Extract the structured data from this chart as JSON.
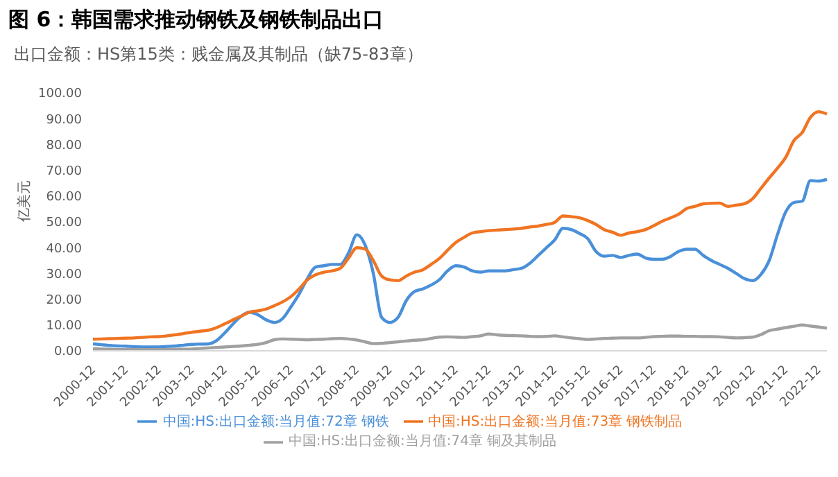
{
  "chart_data": {
    "type": "line",
    "title": "图 6：韩国需求推动钢铁及钢铁制品出口",
    "subtitle": "出口金额：HS第15类：贱金属及其制品（缺75-83章）",
    "ylabel": "亿美元",
    "categories": [
      "2000-12",
      null,
      null,
      null,
      "2001-12",
      null,
      null,
      null,
      "2002-12",
      null,
      null,
      null,
      "2003-12",
      null,
      null,
      null,
      "2004-12",
      null,
      null,
      null,
      "2005-12",
      null,
      null,
      null,
      "2006-12",
      null,
      null,
      null,
      "2007-12",
      null,
      null,
      null,
      "2008-12",
      null,
      null,
      null,
      "2009-12",
      null,
      null,
      null,
      "2010-12",
      null,
      null,
      null,
      "2011-12",
      null,
      null,
      null,
      "2012-12",
      null,
      null,
      null,
      "2013-12",
      null,
      null,
      null,
      "2014-12",
      null,
      null,
      null,
      "2015-12",
      null,
      null,
      null,
      "2016-12",
      null,
      null,
      null,
      "2017-12",
      null,
      null,
      null,
      "2018-12",
      null,
      null,
      null,
      "2019-12",
      null,
      null,
      null,
      "2020-12",
      null,
      null,
      null,
      "2021-12",
      null,
      null,
      null,
      "2022-12",
      null
    ],
    "series": [
      {
        "name": "中国:HS:出口金额:当月值:72章 钢铁",
        "color": "#4a90d9",
        "values": [
          2.7,
          2.4,
          2.1,
          1.9,
          1.8,
          1.6,
          1.5,
          1.5,
          1.5,
          1.7,
          1.9,
          2.2,
          2.5,
          2.6,
          2.7,
          4,
          7,
          10.5,
          13.5,
          15,
          14,
          12,
          11,
          12.5,
          17,
          22,
          28,
          32.5,
          33,
          33.5,
          33.5,
          38,
          45,
          41,
          30,
          13,
          11,
          13,
          19.5,
          23,
          24,
          25.5,
          27.5,
          31,
          33,
          32.5,
          31,
          30.5,
          31,
          31,
          31,
          31.5,
          32,
          34,
          37,
          40,
          43,
          47.5,
          47,
          45.5,
          43.5,
          38.5,
          36.7,
          37,
          36.2,
          37,
          37.5,
          36,
          35.5,
          35.5,
          36.5,
          38.5,
          39.4,
          39.4,
          37,
          35,
          33.5,
          32,
          30,
          28,
          27.2,
          29.6,
          35,
          45,
          53.8,
          57.5,
          58,
          66,
          65.8,
          66.5
        ]
      },
      {
        "name": "中国:HS:出口金额:当月值:73章 钢铁制品",
        "color": "#f07422",
        "values": [
          4.5,
          4.6,
          4.7,
          4.8,
          4.9,
          5.0,
          5.2,
          5.4,
          5.5,
          5.8,
          6.2,
          6.7,
          7.2,
          7.6,
          8.0,
          9,
          10.5,
          12,
          13.5,
          15,
          15.5,
          16.2,
          17.5,
          19,
          21,
          24,
          27.5,
          29.5,
          30.5,
          31,
          32,
          36,
          40,
          39.5,
          35,
          29,
          27.5,
          27.2,
          29,
          30.5,
          31.4,
          33.5,
          35.8,
          39,
          42,
          44,
          45.7,
          46.2,
          46.6,
          46.8,
          47,
          47.2,
          47.5,
          48,
          48.4,
          49,
          49.8,
          52.3,
          52,
          51.6,
          50.5,
          49,
          47,
          46,
          44.8,
          45.7,
          46.2,
          47,
          48.5,
          50.2,
          51.5,
          52.9,
          55.2,
          56,
          57,
          57.2,
          57.3,
          56,
          56.5,
          57,
          59,
          63,
          67,
          70.8,
          75,
          81.5,
          84.6,
          90.5,
          92.7,
          91.8
        ]
      },
      {
        "name": "中国:HS:出口金额:当月值:74章 铜及其制品",
        "color": "#a0a0a0",
        "values": [
          0.8,
          0.7,
          0.6,
          0.5,
          0.5,
          0.5,
          0.5,
          0.5,
          0.5,
          0.5,
          0.6,
          0.6,
          0.7,
          0.9,
          1.1,
          1.3,
          1.5,
          1.7,
          1.9,
          2.2,
          2.5,
          3.2,
          4.3,
          4.6,
          4.5,
          4.4,
          4.3,
          4.4,
          4.5,
          4.7,
          4.8,
          4.6,
          4.2,
          3.5,
          2.8,
          2.9,
          3.2,
          3.5,
          3.8,
          4.1,
          4.3,
          4.8,
          5.3,
          5.4,
          5.3,
          5.2,
          5.5,
          5.8,
          6.5,
          6.2,
          6,
          5.9,
          5.8,
          5.6,
          5.5,
          5.6,
          5.8,
          5.4,
          5,
          4.7,
          4.4,
          4.6,
          4.8,
          4.9,
          5,
          5,
          5,
          5.2,
          5.5,
          5.6,
          5.7,
          5.7,
          5.6,
          5.6,
          5.5,
          5.5,
          5.4,
          5.2,
          5,
          5.1,
          5.3,
          6.3,
          7.8,
          8.4,
          9,
          9.5,
          10,
          9.6,
          9.2,
          8.8
        ]
      }
    ],
    "ylim": [
      0,
      100
    ],
    "yticks": [
      {
        "value": 0,
        "label": "0.00"
      },
      {
        "value": 10,
        "label": "10.00"
      },
      {
        "value": 20,
        "label": "20.00"
      },
      {
        "value": 30,
        "label": "30.00"
      },
      {
        "value": 40,
        "label": "40.00"
      },
      {
        "value": 50,
        "label": "50.00"
      },
      {
        "value": 60,
        "label": "60.00"
      },
      {
        "value": 70,
        "label": "70.00"
      },
      {
        "value": 80,
        "label": "80.00"
      },
      {
        "value": 90,
        "label": "90.00"
      },
      {
        "value": 100,
        "label": "100.00"
      }
    ],
    "legend": "bottom"
  }
}
